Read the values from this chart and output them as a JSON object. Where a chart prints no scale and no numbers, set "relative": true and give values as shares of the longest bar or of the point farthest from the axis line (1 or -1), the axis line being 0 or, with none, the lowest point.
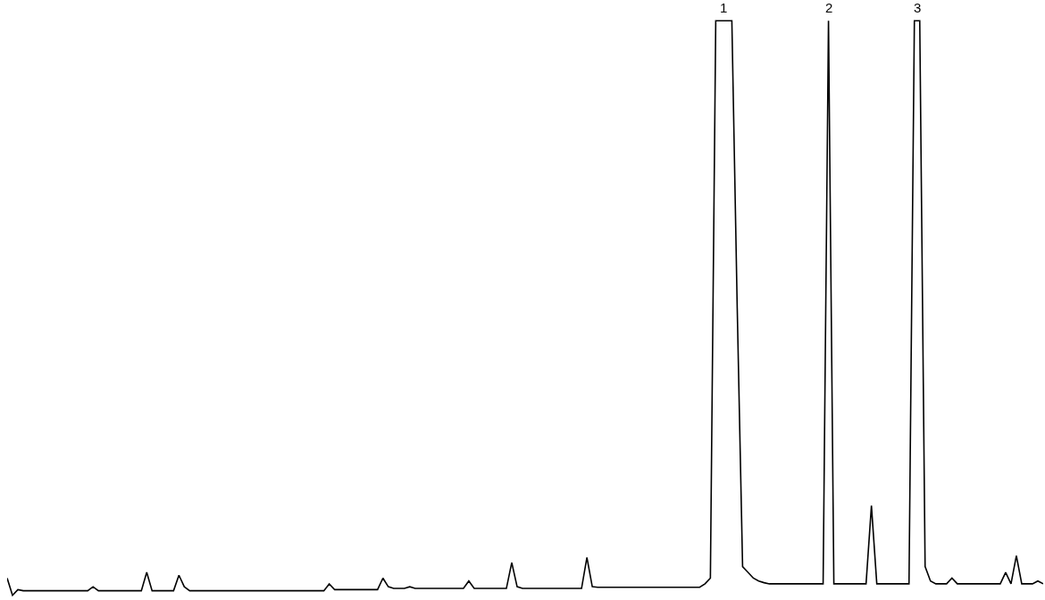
{
  "chart_data": {
    "type": "line",
    "relative": true,
    "marker": "none",
    "line_style": "solid",
    "categories": [
      null,
      null,
      null,
      null,
      null,
      null,
      null,
      null,
      null,
      null,
      null,
      null,
      null,
      null,
      null,
      null,
      null,
      null,
      null,
      null,
      null,
      null,
      null,
      null,
      null,
      null,
      null,
      null,
      null,
      null,
      null,
      null,
      null,
      null,
      null,
      null,
      null,
      null,
      null,
      null,
      null,
      null,
      null,
      null,
      null,
      null,
      null,
      null,
      null,
      null,
      null,
      null,
      null,
      null,
      null,
      null,
      null,
      null,
      null,
      null,
      null,
      null,
      null,
      null,
      null,
      null,
      null,
      null,
      null,
      null,
      null,
      null,
      null,
      null,
      null,
      null,
      null,
      null,
      null,
      null,
      null,
      null,
      null,
      null,
      null,
      null,
      null,
      null,
      null,
      null,
      null,
      null,
      null,
      null,
      null,
      null,
      null,
      null,
      null,
      null,
      null,
      null,
      null,
      null,
      null,
      null,
      null,
      null,
      null,
      null,
      null,
      null,
      null,
      null,
      null,
      null,
      null,
      null,
      null,
      null,
      null,
      null,
      null,
      null,
      null,
      null,
      null,
      null,
      null,
      null,
      null,
      null,
      null,
      null,
      null,
      null,
      null,
      null,
      null,
      null,
      null,
      null,
      null,
      null,
      null,
      null,
      null,
      null,
      null,
      null,
      null,
      null,
      null,
      null,
      null,
      null,
      null,
      null,
      null,
      null,
      null,
      null,
      null,
      null,
      null,
      null,
      null,
      null,
      null,
      null,
      null,
      null,
      null,
      null,
      null,
      null,
      null,
      null,
      null,
      null,
      null,
      null,
      null,
      null,
      null,
      null,
      null,
      null,
      null,
      null,
      null,
      null,
      null,
      null
    ],
    "series": [
      {
        "color": "#000000",
        "values": [
          0.03,
          0,
          0.01,
          0.008,
          0.008,
          0.008,
          0.008,
          0.008,
          0.008,
          0.008,
          0.008,
          0.008,
          0.008,
          0.008,
          0.008,
          0.008,
          0.015,
          0.008,
          0.008,
          0.008,
          0.008,
          0.008,
          0.008,
          0.008,
          0.008,
          0.008,
          0.04,
          0.008,
          0.008,
          0.008,
          0.008,
          0.008,
          0.035,
          0.015,
          0.008,
          0.008,
          0.008,
          0.008,
          0.008,
          0.008,
          0.008,
          0.008,
          0.008,
          0.008,
          0.008,
          0.008,
          0.008,
          0.008,
          0.008,
          0.008,
          0.008,
          0.008,
          0.008,
          0.008,
          0.008,
          0.008,
          0.008,
          0.008,
          0.008,
          0.008,
          0.02,
          0.01,
          0.01,
          0.01,
          0.01,
          0.01,
          0.01,
          0.01,
          0.01,
          0.01,
          0.03,
          0.015,
          0.012,
          0.012,
          0.012,
          0.015,
          0.012,
          0.012,
          0.012,
          0.012,
          0.012,
          0.012,
          0.012,
          0.012,
          0.012,
          0.012,
          0.025,
          0.012,
          0.012,
          0.012,
          0.012,
          0.012,
          0.012,
          0.012,
          0.057,
          0.015,
          0.012,
          0.012,
          0.012,
          0.012,
          0.012,
          0.012,
          0.012,
          0.012,
          0.012,
          0.012,
          0.012,
          0.012,
          0.066,
          0.015,
          0.014,
          0.014,
          0.014,
          0.014,
          0.014,
          0.014,
          0.014,
          0.014,
          0.014,
          0.014,
          0.014,
          0.014,
          0.014,
          0.014,
          0.014,
          0.014,
          0.014,
          0.014,
          0.014,
          0.014,
          0.02,
          0.03,
          1,
          1,
          1,
          1,
          0.5,
          0.05,
          0.04,
          0.03,
          0.025,
          0.022,
          0.02,
          0.02,
          0.02,
          0.02,
          0.02,
          0.02,
          0.02,
          0.02,
          0.02,
          0.02,
          0.02,
          1,
          0.02,
          0.02,
          0.02,
          0.02,
          0.02,
          0.02,
          0.02,
          0.156,
          0.02,
          0.02,
          0.02,
          0.02,
          0.02,
          0.02,
          0.02,
          1,
          1,
          0.05,
          0.025,
          0.02,
          0.02,
          0.02,
          0.03,
          0.02,
          0.02,
          0.02,
          0.02,
          0.02,
          0.02,
          0.02,
          0.02,
          0.02,
          0.04,
          0.02,
          0.069,
          0.02,
          0.02,
          0.02,
          0.025,
          0.02
        ]
      }
    ],
    "annotations": [
      "1",
      "2",
      "3"
    ]
  }
}
